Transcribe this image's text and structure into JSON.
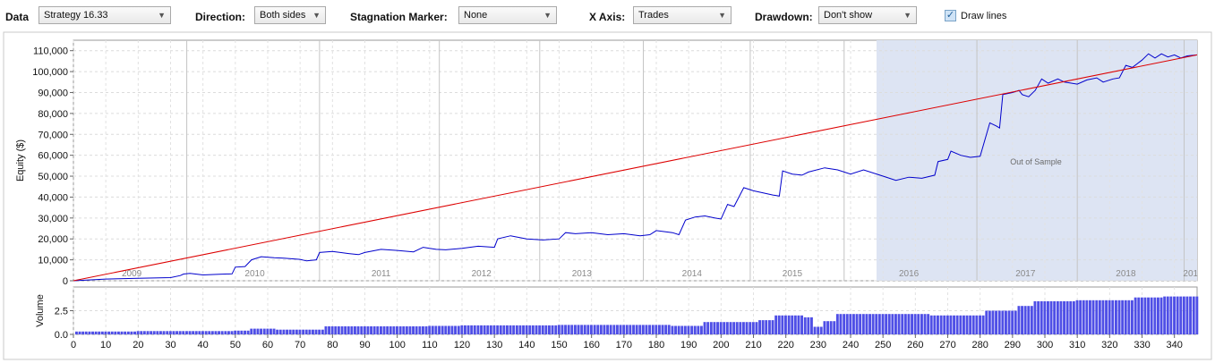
{
  "toolbar": {
    "data_label": "Data",
    "data_value": "Strategy 16.33",
    "direction_label": "Direction:",
    "direction_value": "Both sides",
    "stagnation_label": "Stagnation Marker:",
    "stagnation_value": "None",
    "xaxis_label": "X Axis:",
    "xaxis_value": "Trades",
    "drawdown_label": "Drawdown:",
    "drawdown_value": "Don't show",
    "drawlines_label": "Draw lines",
    "drawlines_checked": true
  },
  "chart_data": [
    {
      "type": "line",
      "ylabel": "Equity ($)",
      "ylim": [
        0,
        115000
      ],
      "xlim": [
        0,
        347
      ],
      "y_ticks": [
        0,
        10000,
        20000,
        30000,
        40000,
        50000,
        60000,
        70000,
        80000,
        90000,
        100000,
        110000
      ],
      "y_tick_labels": [
        "0",
        "10,000",
        "20,000",
        "30,000",
        "40,000",
        "50,000",
        "60,000",
        "70,000",
        "80,000",
        "90,000",
        "100,000",
        "110,000"
      ],
      "grid": true,
      "year_labels": [
        {
          "label": "2009",
          "x": 18
        },
        {
          "label": "2010",
          "x": 56
        },
        {
          "label": "2011",
          "x": 95
        },
        {
          "label": "2012",
          "x": 126
        },
        {
          "label": "2013",
          "x": 157
        },
        {
          "label": "2014",
          "x": 191
        },
        {
          "label": "2015",
          "x": 222
        },
        {
          "label": "2016",
          "x": 258
        },
        {
          "label": "2017",
          "x": 294
        },
        {
          "label": "2018",
          "x": 325
        },
        {
          "label": "201",
          "x": 345
        }
      ],
      "year_boundaries": [
        35,
        76,
        113,
        144,
        176,
        209,
        238,
        279,
        310,
        343
      ],
      "out_of_sample_start": 248,
      "out_of_sample_label": "Out of Sample",
      "series": [
        {
          "color": "#0000cc",
          "points": [
            [
              0,
              0
            ],
            [
              10,
              800
            ],
            [
              20,
              1200
            ],
            [
              30,
              1500
            ],
            [
              33,
              2500
            ],
            [
              34,
              3200
            ],
            [
              36,
              3500
            ],
            [
              40,
              2800
            ],
            [
              45,
              3100
            ],
            [
              49,
              3300
            ],
            [
              50,
              6500
            ],
            [
              53,
              6800
            ],
            [
              55,
              10000
            ],
            [
              58,
              11500
            ],
            [
              62,
              11000
            ],
            [
              65,
              10800
            ],
            [
              70,
              10200
            ],
            [
              72,
              9500
            ],
            [
              75,
              10000
            ],
            [
              76,
              13500
            ],
            [
              80,
              14000
            ],
            [
              85,
              13000
            ],
            [
              88,
              12500
            ],
            [
              90,
              13500
            ],
            [
              95,
              15000
            ],
            [
              100,
              14500
            ],
            [
              105,
              13800
            ],
            [
              108,
              16000
            ],
            [
              112,
              15000
            ],
            [
              115,
              14800
            ],
            [
              120,
              15500
            ],
            [
              125,
              16500
            ],
            [
              130,
              16000
            ],
            [
              131,
              20000
            ],
            [
              135,
              21500
            ],
            [
              140,
              20000
            ],
            [
              145,
              19500
            ],
            [
              150,
              20000
            ],
            [
              152,
              23000
            ],
            [
              155,
              22500
            ],
            [
              160,
              23000
            ],
            [
              165,
              22000
            ],
            [
              170,
              22500
            ],
            [
              175,
              21500
            ],
            [
              178,
              22000
            ],
            [
              180,
              24000
            ],
            [
              185,
              23000
            ],
            [
              187,
              22000
            ],
            [
              189,
              29000
            ],
            [
              192,
              30500
            ],
            [
              195,
              31000
            ],
            [
              198,
              30000
            ],
            [
              200,
              29500
            ],
            [
              202,
              36500
            ],
            [
              204,
              35500
            ],
            [
              207,
              44500
            ],
            [
              210,
              43000
            ],
            [
              213,
              42000
            ],
            [
              216,
              41000
            ],
            [
              218,
              40500
            ],
            [
              219,
              52500
            ],
            [
              222,
              51000
            ],
            [
              225,
              50500
            ],
            [
              227,
              52000
            ],
            [
              232,
              54000
            ],
            [
              236,
              53000
            ],
            [
              240,
              51000
            ],
            [
              244,
              53000
            ],
            [
              250,
              50000
            ],
            [
              254,
              48000
            ],
            [
              258,
              49500
            ],
            [
              262,
              49000
            ],
            [
              266,
              50500
            ],
            [
              267,
              57000
            ],
            [
              270,
              58000
            ],
            [
              271,
              62000
            ],
            [
              274,
              60000
            ],
            [
              277,
              59000
            ],
            [
              280,
              59500
            ],
            [
              283,
              75500
            ],
            [
              285,
              74000
            ],
            [
              286,
              73000
            ],
            [
              287,
              89000
            ],
            [
              290,
              90000
            ],
            [
              292,
              91000
            ],
            [
              293,
              89000
            ],
            [
              295,
              88000
            ],
            [
              297,
              91000
            ],
            [
              299,
              96500
            ],
            [
              301,
              94500
            ],
            [
              304,
              96500
            ],
            [
              306,
              95000
            ],
            [
              310,
              94000
            ],
            [
              313,
              96000
            ],
            [
              316,
              97000
            ],
            [
              318,
              95000
            ],
            [
              321,
              96500
            ],
            [
              323,
              97000
            ],
            [
              325,
              103000
            ],
            [
              327,
              102000
            ],
            [
              330,
              105500
            ],
            [
              332,
              108500
            ],
            [
              334,
              106500
            ],
            [
              336,
              108500
            ],
            [
              338,
              107000
            ],
            [
              340,
              108000
            ],
            [
              342,
              106500
            ],
            [
              344,
              107500
            ],
            [
              347,
              108000
            ]
          ]
        },
        {
          "color": "#dd0000",
          "points": [
            [
              0,
              0
            ],
            [
              347,
              108000
            ]
          ]
        }
      ]
    },
    {
      "type": "bar",
      "ylabel": "Volume",
      "ylim": [
        0,
        5
      ],
      "y_ticks": [
        0,
        2.5
      ],
      "y_tick_labels": [
        "0.0",
        "2.5"
      ],
      "xlim": [
        0,
        347
      ],
      "x_ticks": [
        0,
        10,
        20,
        30,
        40,
        50,
        60,
        70,
        80,
        90,
        100,
        110,
        120,
        130,
        140,
        150,
        160,
        170,
        180,
        190,
        200,
        210,
        220,
        230,
        240,
        250,
        260,
        270,
        280,
        290,
        300,
        310,
        320,
        330,
        340
      ],
      "x_tick_labels": [
        "0",
        "10",
        "20",
        "30",
        "40",
        "50",
        "60",
        "70",
        "80",
        "90",
        "100",
        "110",
        "120",
        "130",
        "140",
        "150",
        "160",
        "170",
        "180",
        "190",
        "200",
        "210",
        "220",
        "230",
        "240",
        "250",
        "260",
        "270",
        "280",
        "290",
        "300",
        "310",
        "320",
        "330",
        "340"
      ],
      "bar_color": "#4f4fe6",
      "volume_steps": [
        [
          1,
          0.3
        ],
        [
          20,
          0.35
        ],
        [
          50,
          0.4
        ],
        [
          55,
          0.6
        ],
        [
          63,
          0.5
        ],
        [
          78,
          0.85
        ],
        [
          110,
          0.9
        ],
        [
          120,
          0.95
        ],
        [
          150,
          1.0
        ],
        [
          185,
          0.9
        ],
        [
          195,
          1.3
        ],
        [
          212,
          1.5
        ],
        [
          217,
          2.0
        ],
        [
          226,
          1.8
        ],
        [
          229,
          0.8
        ],
        [
          232,
          1.4
        ],
        [
          236,
          2.15
        ],
        [
          265,
          2.0
        ],
        [
          282,
          2.5
        ],
        [
          292,
          3.0
        ],
        [
          297,
          3.5
        ],
        [
          310,
          3.6
        ],
        [
          328,
          3.9
        ],
        [
          337,
          4.0
        ],
        [
          347,
          4.0
        ]
      ]
    }
  ]
}
